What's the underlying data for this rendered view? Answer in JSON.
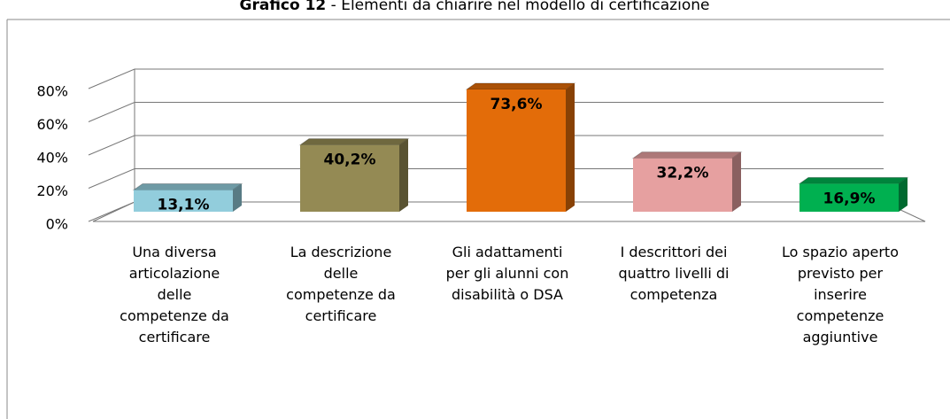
{
  "chart_data": {
    "type": "bar3d",
    "title": {
      "label": "Grafico 12",
      "text": "- Elementi da chiarire nel modello di certificazione"
    },
    "categories": [
      "Una diversa\narticolazione\ndelle\ncompetenze da\ncertificare",
      "La descrizione\ndelle\ncompetenze da\ncertificare",
      "Gli adattamenti\nper gli alunni con\ndisabilità o DSA",
      "I descrittori dei\nquattro livelli di\ncompetenza",
      "Lo spazio aperto\nprevisto per\ninserire\ncompetenze\naggiuntive"
    ],
    "values": [
      13.1,
      40.2,
      73.6,
      32.2,
      16.9
    ],
    "value_labels": [
      "13,1%",
      "40,2%",
      "73,6%",
      "32,2%",
      "16,9%"
    ],
    "colors": [
      "#92cddc",
      "#948a54",
      "#e36c09",
      "#e6a0a0",
      "#00b050"
    ],
    "ylim": [
      0,
      80
    ],
    "yticks": [
      {
        "value": 0,
        "label": "0%"
      },
      {
        "value": 20,
        "label": "20%"
      },
      {
        "value": 40,
        "label": "40%"
      },
      {
        "value": 60,
        "label": "60%"
      },
      {
        "value": 80,
        "label": "80%"
      }
    ],
    "grid": true
  }
}
